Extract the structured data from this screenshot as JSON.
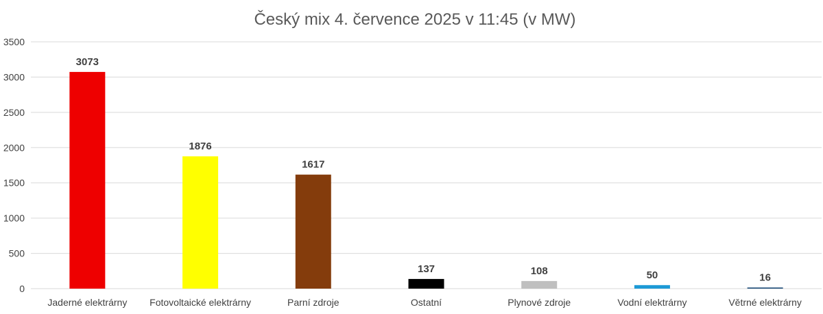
{
  "chart_data": {
    "type": "bar",
    "title": "Český mix 4. července 2025 v 11:45 (v MW)",
    "xlabel": "",
    "ylabel": "",
    "categories": [
      "Jaderné elektrárny",
      "Fotovoltaické elektrárny",
      "Parní zdroje",
      "Ostatní",
      "Plynové zdroje",
      "Vodní elektrárny",
      "Větrné elektrárny"
    ],
    "values": [
      3073,
      1876,
      1617,
      137,
      108,
      50,
      16
    ],
    "colors": [
      "#ee0000",
      "#ffff00",
      "#843c0c",
      "#000000",
      "#bfbfbf",
      "#1e9ad6",
      "#1f4e79"
    ],
    "ylim": [
      0,
      3500
    ],
    "yticks": [
      0,
      500,
      1000,
      1500,
      2000,
      2500,
      3000,
      3500
    ],
    "grid": true,
    "legend": "none"
  }
}
